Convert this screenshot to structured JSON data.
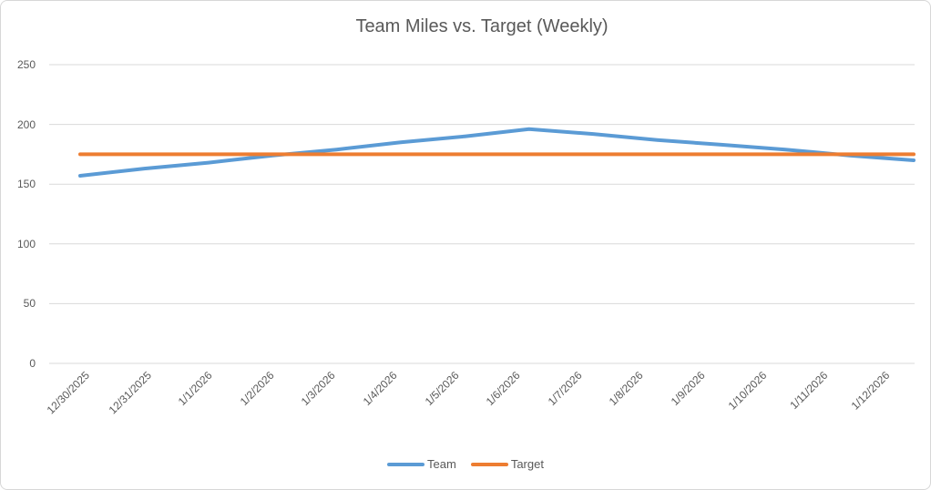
{
  "chart_data": {
    "type": "line",
    "title": "Team Miles vs. Target (Weekly)",
    "categories": [
      "12/30/2025",
      "12/31/2025",
      "1/1/2026",
      "1/2/2026",
      "1/3/2026",
      "1/4/2026",
      "1/5/2026",
      "1/6/2026",
      "1/7/2026",
      "1/8/2026",
      "1/9/2026",
      "1/10/2026",
      "1/11/2026",
      "1/12/2026"
    ],
    "series": [
      {
        "name": "Team",
        "color": "#5b9bd5",
        "values": [
          157,
          163,
          168,
          174,
          179,
          185,
          190,
          196,
          192,
          187,
          183,
          179,
          174,
          170
        ]
      },
      {
        "name": "Target",
        "color": "#ed7d31",
        "values": [
          175,
          175,
          175,
          175,
          175,
          175,
          175,
          175,
          175,
          175,
          175,
          175,
          175,
          175
        ]
      }
    ],
    "y_ticks": [
      0,
      50,
      100,
      150,
      200,
      250
    ],
    "ylim": [
      0,
      250
    ],
    "xlabel": "",
    "ylabel": "",
    "grid": "horizontal-only",
    "gridline_color": "#d9d9d9",
    "text_color": "#595959",
    "legend_position": "bottom"
  }
}
